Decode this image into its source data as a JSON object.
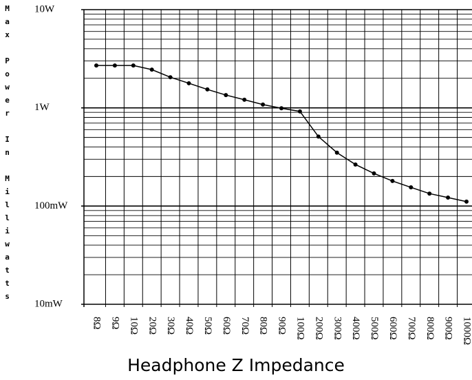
{
  "chart_data": {
    "type": "line",
    "log_y": true,
    "grid": true,
    "color": "#000000",
    "x_label": "Headphone Z Impedance",
    "y_label": "Max Power In Milliwatts",
    "categories": [
      "8Ω",
      "9Ω",
      "10Ω",
      "20Ω",
      "30Ω",
      "40Ω",
      "50Ω",
      "60Ω",
      "70Ω",
      "80Ω",
      "90Ω",
      "100Ω",
      "200Ω",
      "300Ω",
      "400Ω",
      "500Ω",
      "600Ω",
      "700Ω",
      "800Ω",
      "900Ω",
      "1000Ω"
    ],
    "values": [
      2700,
      2700,
      2700,
      2450,
      2050,
      1780,
      1540,
      1350,
      1210,
      1080,
      990,
      920,
      510,
      350,
      265,
      215,
      180,
      155,
      134,
      122,
      111
    ],
    "ylim": [
      10,
      10000
    ],
    "yticks": [
      {
        "value": 10,
        "label": "10mW"
      },
      {
        "value": 100,
        "label": "100mW"
      },
      {
        "value": 1000,
        "label": "1W"
      },
      {
        "value": 10000,
        "label": "10W"
      }
    ]
  }
}
